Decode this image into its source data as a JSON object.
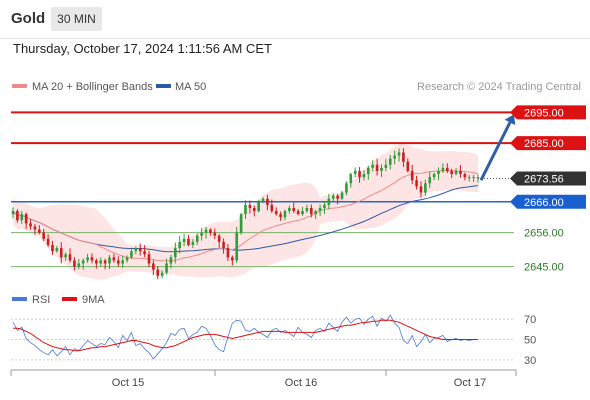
{
  "header": {
    "title": "Gold",
    "timeframe": "30 MIN",
    "datetime": "Thursday, October 17, 2024 1:11:56 AM CET"
  },
  "legend": {
    "ma20": "MA 20 + Bollinger Bands",
    "ma50": "MA 50",
    "credit": "Research © 2024 Trading Central"
  },
  "colors": {
    "up": "#2f9e3a",
    "down": "#cc1f1f",
    "resistance": "#dd1111",
    "pivot": "#2766c9",
    "support": "#79b36a",
    "ma20": "#f08a8a",
    "ma50": "#2b5aa6",
    "band": "#fde2e2",
    "rsi": "#4a78d6",
    "rsi_ma": "#dd1111",
    "arrow": "#2d5ea8",
    "last_price": "#333333"
  },
  "chart_data": [
    {
      "type": "candlestick",
      "ylim": [
        2640,
        2699
      ],
      "x_ticks": [
        "Oct 15",
        "Oct 16",
        "Oct 17"
      ],
      "levels": [
        {
          "value": 2695.0,
          "label": "2695.00",
          "kind": "resistance"
        },
        {
          "value": 2685.0,
          "label": "2685.00",
          "kind": "resistance"
        },
        {
          "value": 2666.0,
          "label": "2666.00",
          "kind": "pivot"
        },
        {
          "value": 2656.0,
          "label": "2656.00",
          "kind": "support"
        },
        {
          "value": 2645.0,
          "label": "2645.00",
          "kind": "support"
        }
      ],
      "last_price": {
        "value": 2673.56,
        "label": "2673.56"
      },
      "arrow": {
        "from": 2673,
        "to": 2695
      },
      "series": [
        {
          "name": "MA 20 + Bollinger Bands"
        },
        {
          "name": "MA 50"
        }
      ],
      "closes": [
        2663,
        2660,
        2662,
        2659,
        2658,
        2657,
        2656,
        2654,
        2652,
        2650,
        2651,
        2648,
        2649,
        2647,
        2645,
        2646,
        2647,
        2648,
        2647,
        2646,
        2647,
        2646,
        2648,
        2647,
        2646,
        2647,
        2648,
        2650,
        2651,
        2650,
        2649,
        2646,
        2644,
        2642,
        2643,
        2646,
        2648,
        2651,
        2653,
        2654,
        2652,
        2653,
        2655,
        2656,
        2657,
        2656,
        2655,
        2653,
        2651,
        2648,
        2647,
        2656,
        2662,
        2665,
        2664,
        2663,
        2666,
        2667,
        2665,
        2663,
        2662,
        2661,
        2663,
        2664,
        2663,
        2662,
        2663,
        2664,
        2662,
        2663,
        2664,
        2665,
        2667,
        2668,
        2667,
        2669,
        2672,
        2675,
        2676,
        2674,
        2675,
        2677,
        2678,
        2676,
        2677,
        2678,
        2680,
        2681,
        2682,
        2679,
        2676,
        2673,
        2671,
        2669,
        2672,
        2674,
        2675,
        2676,
        2677,
        2676,
        2675,
        2676,
        2675,
        2674,
        2674,
        2674,
        2674
      ]
    },
    {
      "type": "line",
      "ylim": [
        22,
        80
      ],
      "y_ticks": [
        70,
        50,
        30
      ],
      "series": [
        {
          "name": "RSI",
          "values": [
            67,
            59,
            62,
            51,
            47,
            44,
            40,
            37,
            35,
            40,
            34,
            38,
            43,
            35,
            41,
            39,
            44,
            49,
            46,
            43,
            46,
            45,
            52,
            48,
            42,
            54,
            49,
            57,
            44,
            46,
            41,
            37,
            31,
            36,
            41,
            47,
            56,
            54,
            60,
            61,
            51,
            55,
            57,
            63,
            61,
            54,
            45,
            40,
            38,
            53,
            66,
            69,
            68,
            59,
            58,
            61,
            57,
            55,
            52,
            59,
            61,
            57,
            59,
            56,
            53,
            62,
            57,
            55,
            52,
            59,
            61,
            58,
            66,
            62,
            58,
            67,
            72,
            66,
            70,
            71,
            65,
            70,
            73,
            63,
            71,
            68,
            74,
            66,
            62,
            49,
            46,
            54,
            43,
            48,
            55,
            47,
            51,
            52,
            54,
            48,
            50,
            51,
            49,
            50,
            49,
            50,
            50
          ]
        },
        {
          "name": "9MA",
          "values": [
            61,
            61,
            60,
            58,
            56,
            53,
            50,
            47,
            45,
            43,
            42,
            41,
            40,
            40,
            39,
            39,
            40,
            41,
            42,
            42,
            43,
            43,
            44,
            45,
            46,
            47,
            48,
            49,
            49,
            48,
            47,
            46,
            44,
            43,
            42,
            42,
            43,
            44,
            46,
            48,
            50,
            52,
            53,
            54,
            55,
            55,
            55,
            54,
            53,
            52,
            51,
            52,
            53,
            54,
            55,
            56,
            57,
            58,
            58,
            58,
            58,
            58,
            57,
            57,
            57,
            57,
            57,
            57,
            57,
            57,
            58,
            59,
            60,
            61,
            62,
            63,
            64,
            64,
            65,
            66,
            67,
            67,
            68,
            68,
            69,
            69,
            69,
            68,
            67,
            65,
            63,
            61,
            59,
            57,
            55,
            53,
            52,
            51,
            50,
            50,
            50,
            50,
            50,
            50,
            50,
            50,
            50
          ]
        }
      ]
    }
  ]
}
